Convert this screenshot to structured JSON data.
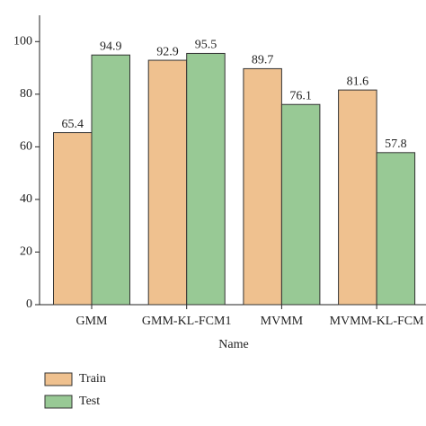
{
  "chart_data": {
    "type": "bar",
    "x_label": "Name",
    "categories": [
      "GMM",
      "GMM-KL-FCM1",
      "MVMM",
      "MVMM-KL-FCM"
    ],
    "series": [
      {
        "name": "Train",
        "color": "#efc18f",
        "values": [
          65.4,
          92.9,
          89.7,
          81.6
        ]
      },
      {
        "name": "Test",
        "color": "#98c995",
        "values": [
          94.9,
          95.5,
          76.1,
          57.8
        ]
      }
    ],
    "ylim": [
      0,
      110
    ],
    "yticks": [
      0,
      20,
      40,
      60,
      80,
      100
    ],
    "grid": false,
    "legend": "bottom-left",
    "value_labels_shown": true
  }
}
